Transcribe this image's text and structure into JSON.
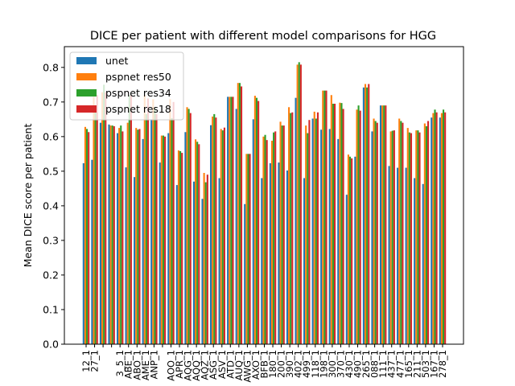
{
  "chart_data": {
    "type": "bar",
    "title": "DICE per patient with different model comparisons for HGG",
    "xlabel": "",
    "ylabel": "Mean DICE score per patient",
    "ylim": [
      0,
      0.86
    ],
    "yticks": [
      "0.0",
      "0.1",
      "0.2",
      "0.3",
      "0.4",
      "0.5",
      "0.6",
      "0.7",
      "0.8"
    ],
    "legend_position": "top-left",
    "grid": false,
    "categories": [
      "12_1",
      "27_1",
      "",
      "",
      "3_5_1",
      "ABE_1",
      "ABO_1",
      "AME_1",
      "ANP_1",
      "",
      "AOO_1",
      "APR_1",
      "AQG_1",
      "AQQ_1",
      "AQZ_1",
      "ASG_1",
      "ASV_1",
      "ATD_1",
      "AUQ_1",
      "AWG_1",
      "AXO_1",
      "BFB_1",
      "180_1",
      "200_1",
      "390_1",
      "402_1",
      "499_1",
      "118_1",
      "198_1",
      "300_1",
      "370_1",
      "430_1",
      "490_1",
      "265_1",
      "088_1",
      "111_1",
      "437_1",
      "477_1",
      "165_1",
      "211_1",
      "503_1",
      "167_1",
      "278_1"
    ],
    "xtick_labels": [
      "12_1",
      "27_1",
      "",
      "",
      "3_5_1",
      "ABE_1",
      "ABO_1",
      "AME_1",
      "ANP_1",
      "",
      "AOO_1",
      "APR_1",
      "AQG_1",
      "AQQ_1",
      "AQZ_1",
      "ASG_1",
      "ASV_1",
      "ATD_1",
      "AUQ_1",
      "AWG_1",
      "AXO_1",
      "BFB_1",
      "180_1",
      "200_1",
      "390_1",
      "402_1",
      "499_1",
      "118_1",
      "198_1",
      "300_1",
      "370_1",
      "430_1",
      "490_1",
      "265_1",
      "088_1",
      "111_1",
      "437_1",
      "477_1",
      "165_1",
      "211_1",
      "503_1",
      "167_1",
      "278_1"
    ],
    "series": [
      {
        "name": "unet",
        "color": "#1f77b4",
        "values": [
          0.523,
          0.533,
          0.64,
          0.635,
          0.61,
          0.511,
          0.483,
          0.593,
          0.65,
          0.525,
          0.61,
          0.46,
          0.613,
          0.47,
          0.42,
          0.633,
          0.48,
          0.715,
          0.68,
          0.405,
          0.65,
          0.48,
          0.523,
          0.525,
          0.502,
          0.712,
          0.48,
          0.652,
          0.62,
          0.622,
          0.593,
          0.432,
          0.542,
          0.742,
          0.615,
          0.69,
          0.515,
          0.51,
          0.51,
          0.48,
          0.463,
          0.655,
          0.655
        ]
      },
      {
        "name": "pspnet res50",
        "color": "#ff7f0e",
        "values": [
          0.628,
          0.715,
          0.728,
          0.632,
          0.625,
          0.64,
          0.625,
          0.72,
          0.708,
          0.603,
          0.708,
          0.56,
          0.685,
          0.592,
          0.495,
          0.658,
          0.622,
          0.715,
          0.755,
          0.55,
          0.718,
          0.6,
          0.588,
          0.643,
          0.685,
          0.808,
          0.632,
          0.672,
          0.733,
          0.72,
          0.698,
          0.548,
          0.678,
          0.752,
          0.652,
          0.69,
          0.615,
          0.652,
          0.625,
          0.618,
          0.638,
          0.668,
          0.668
        ]
      },
      {
        "name": "pspnet res34",
        "color": "#2ca02c",
        "values": [
          0.622,
          0.68,
          0.75,
          0.632,
          0.632,
          0.72,
          0.62,
          0.665,
          0.683,
          0.603,
          0.653,
          0.558,
          0.68,
          0.585,
          0.468,
          0.665,
          0.618,
          0.715,
          0.755,
          0.55,
          0.712,
          0.605,
          0.612,
          0.632,
          0.668,
          0.815,
          0.61,
          0.652,
          0.733,
          0.695,
          0.697,
          0.542,
          0.69,
          0.742,
          0.645,
          0.69,
          0.617,
          0.645,
          0.612,
          0.618,
          0.63,
          0.678,
          0.678
        ]
      },
      {
        "name": "pspnet res18",
        "color": "#d62728",
        "values": [
          0.613,
          0.72,
          0.728,
          0.63,
          0.615,
          0.72,
          0.622,
          0.71,
          0.665,
          0.6,
          0.7,
          0.553,
          0.668,
          0.578,
          0.49,
          0.655,
          0.626,
          0.715,
          0.745,
          0.55,
          0.703,
          0.59,
          0.615,
          0.632,
          0.67,
          0.808,
          0.648,
          0.67,
          0.733,
          0.695,
          0.68,
          0.537,
          0.675,
          0.752,
          0.64,
          0.69,
          0.618,
          0.64,
          0.61,
          0.612,
          0.645,
          0.67,
          0.67
        ]
      }
    ]
  }
}
